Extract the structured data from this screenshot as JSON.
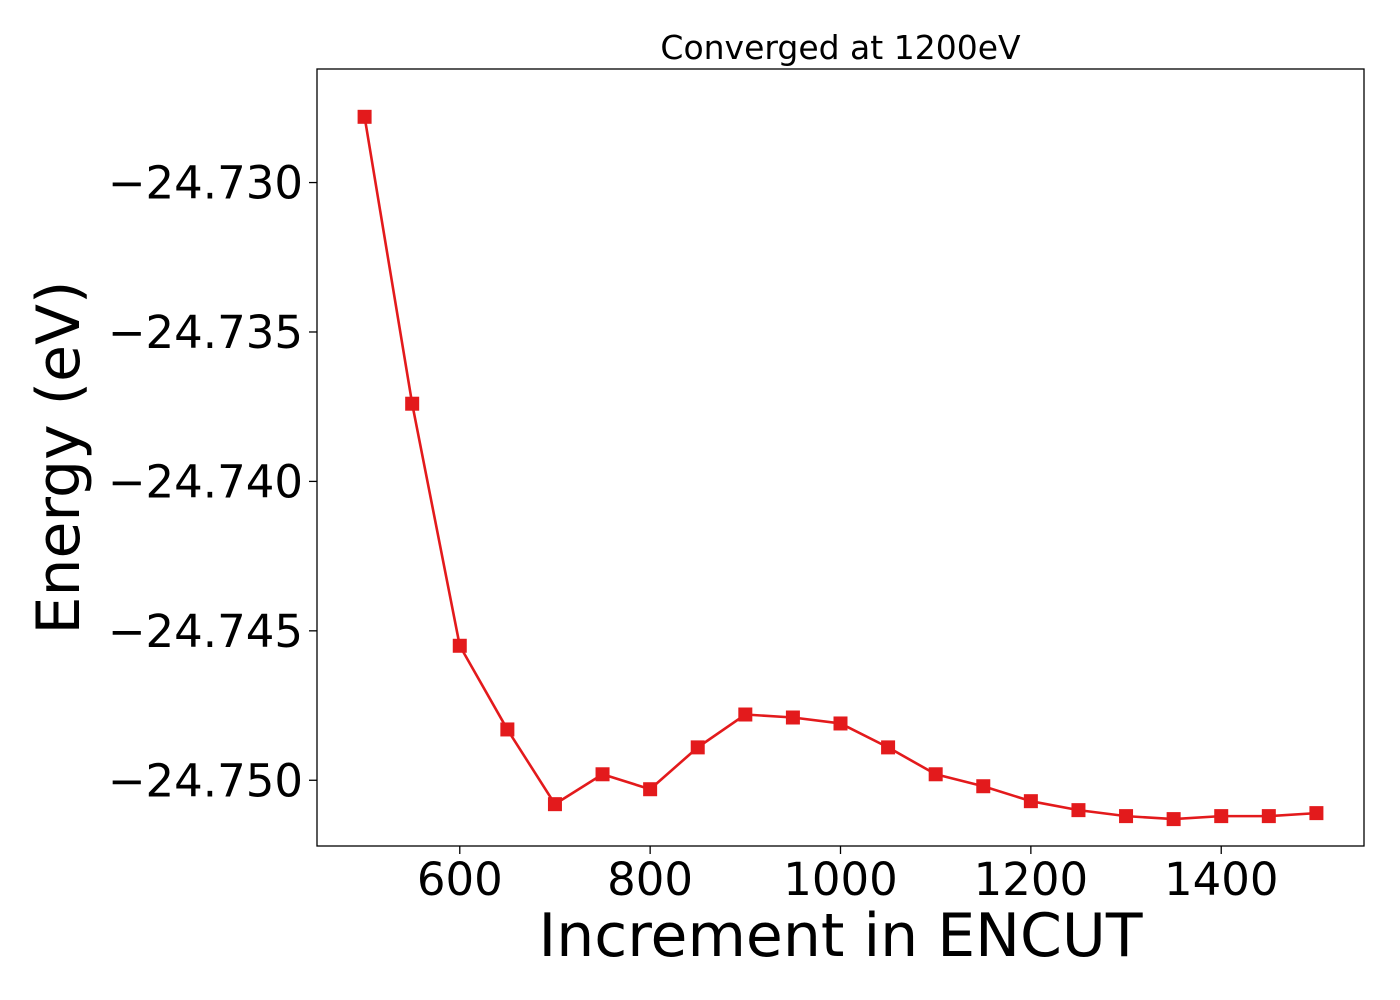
{
  "chart_data": {
    "type": "line",
    "title": "Converged at 1200eV",
    "xlabel": "Increment in ENCUT",
    "ylabel": "Energy (eV)",
    "xlim": [
      450,
      1550
    ],
    "ylim": [
      -24.7522,
      -24.7262
    ],
    "x_ticks": [
      600,
      800,
      1000,
      1200,
      1400
    ],
    "x_tick_labels": [
      "600",
      "800",
      "1000",
      "1200",
      "1400"
    ],
    "y_ticks": [
      -24.73,
      -24.735,
      -24.74,
      -24.745,
      -24.75
    ],
    "y_tick_labels": [
      "−24.730",
      "−24.735",
      "−24.740",
      "−24.745",
      "−24.750"
    ],
    "grid": false,
    "series": [
      {
        "color": "#e31a1c",
        "marker": "square",
        "x": [
          500,
          550,
          600,
          650,
          700,
          750,
          800,
          850,
          900,
          950,
          1000,
          1050,
          1100,
          1150,
          1200,
          1250,
          1300,
          1350,
          1400,
          1450,
          1500
        ],
        "y": [
          -24.7278,
          -24.7374,
          -24.7455,
          -24.7483,
          -24.7508,
          -24.7498,
          -24.7503,
          -24.7489,
          -24.7478,
          -24.7479,
          -24.7481,
          -24.7489,
          -24.7498,
          -24.7502,
          -24.7507,
          -24.751,
          -24.7512,
          -24.7513,
          -24.7512,
          -24.7512,
          -24.7511
        ]
      }
    ]
  }
}
